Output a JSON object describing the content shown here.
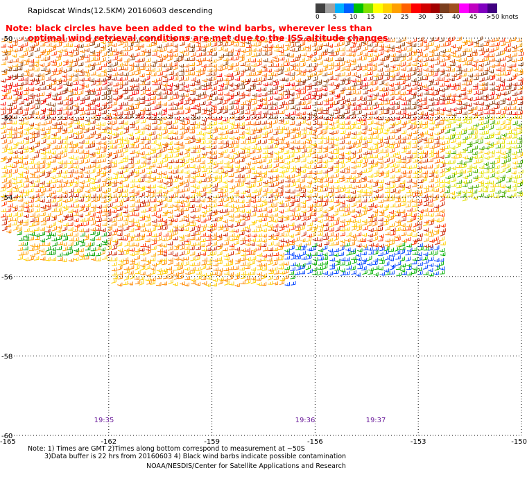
{
  "title": "Rapidscat Winds(12.5KM) 20160603 descending",
  "note": {
    "line1": "Note: black circles have been added to the wind barbs, wherever less than",
    "line2": "optimal wind retrieval conditions are met due to the ISS altitude changes"
  },
  "legend": {
    "labels": [
      "0",
      "5",
      "10",
      "15",
      "20",
      "25",
      "30",
      "35",
      "40",
      "45",
      ">50 knots"
    ],
    "colors": [
      "#404040",
      "#a0a0a0",
      "#00b0ff",
      "#0060ff",
      "#00c000",
      "#80e000",
      "#ffff00",
      "#ffd000",
      "#ffa000",
      "#ff6000",
      "#ff0000",
      "#d00000",
      "#a00000",
      "#7a3e1e",
      "#a05020",
      "#ff00ff",
      "#c000c0",
      "#8000c0",
      "#400080"
    ]
  },
  "map": {
    "lat_labels": [
      "-50",
      "-52",
      "-54",
      "-56",
      "-58",
      "-60"
    ],
    "lon_labels": [
      "-165",
      "-162",
      "-159",
      "-156",
      "-153",
      "-150"
    ],
    "times": [
      "19:35",
      "19:36",
      "19:37"
    ]
  },
  "footer": {
    "line1": "Note: 1) Times are GMT 2)Times along bottom correspond to measurement at ~50S",
    "line2": "3)Data buffer is 22 hrs from 20160603 4) Black wind barbs indicate possible contamination",
    "credit": "NOAA/NESDIS/Center for Satellite Applications and Research"
  }
}
